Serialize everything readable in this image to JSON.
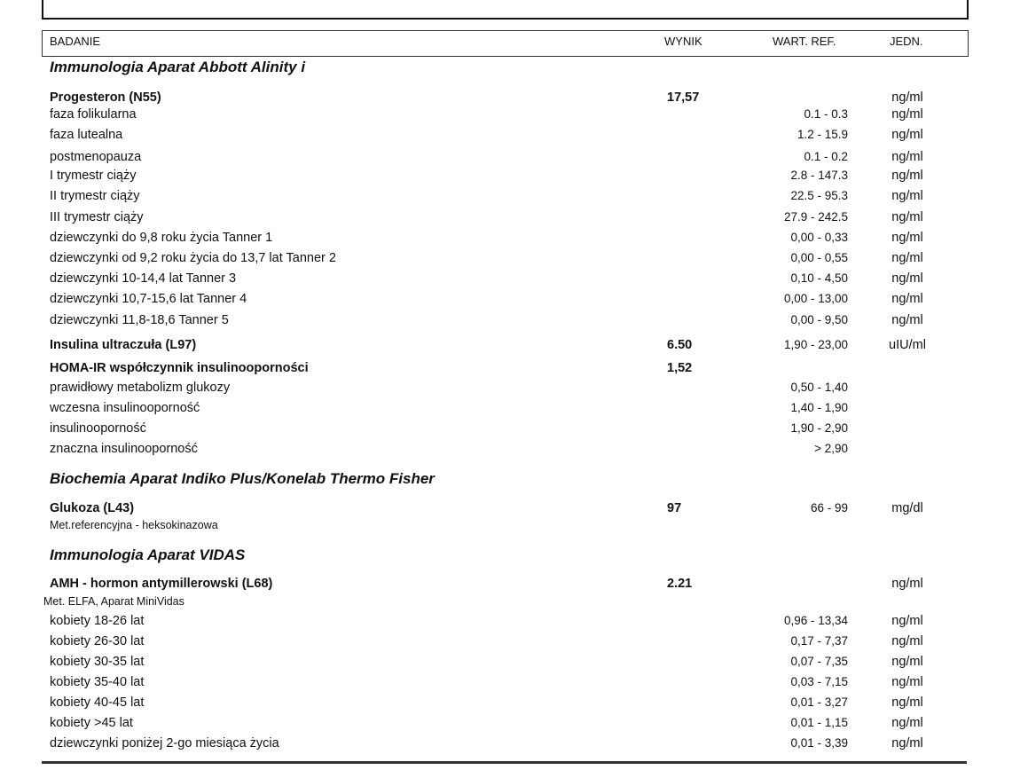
{
  "header": {
    "badanie": "BADANIE",
    "wynik": "WYNIK",
    "wart_ref": "WART. REF.",
    "jedn": "JEDN."
  },
  "rows": [
    {
      "type": "section",
      "name": "Immunologia Aparat Abbott Alinity i"
    },
    {
      "type": "test",
      "name": "Progesteron (N55)",
      "value": "17,57",
      "ref": "",
      "unit": "ng/ml"
    },
    {
      "type": "sub",
      "name": "faza folikularna",
      "ref": "0.1 - 0.3",
      "unit": "ng/ml"
    },
    {
      "type": "sub",
      "name": "faza lutealna",
      "ref": "1.2 - 15.9",
      "unit": "ng/ml"
    },
    {
      "type": "sub",
      "name": "postmenopauza",
      "ref": "0.1 - 0.2",
      "unit": "ng/ml"
    },
    {
      "type": "sub",
      "name": "I trymestr ciąży",
      "ref": "2.8 - 147.3",
      "unit": "ng/ml"
    },
    {
      "type": "sub",
      "name": "II trymestr ciąży",
      "ref": "22.5 - 95.3",
      "unit": "ng/ml"
    },
    {
      "type": "sub",
      "name": "III trymestr ciąży",
      "ref": "27.9 - 242.5",
      "unit": "ng/ml"
    },
    {
      "type": "sub",
      "name": "dziewczynki do 9,8 roku życia Tanner 1",
      "ref": "0,00 - 0,33",
      "unit": "ng/ml"
    },
    {
      "type": "sub",
      "name": "dziewczynki od 9,2 roku życia do 13,7 lat Tanner 2",
      "ref": "0,00 - 0,55",
      "unit": "ng/ml"
    },
    {
      "type": "sub",
      "name": "dziewczynki 10-14,4 lat Tanner 3",
      "ref": "0,10 - 4,50",
      "unit": "ng/ml"
    },
    {
      "type": "sub",
      "name": "dziewczynki 10,7-15,6 lat Tanner 4",
      "ref": "0,00 - 13,00",
      "unit": "ng/ml"
    },
    {
      "type": "sub",
      "name": "dziewczynki 11,8-18,6 Tanner 5",
      "ref": "0,00 - 9,50",
      "unit": "ng/ml"
    },
    {
      "type": "test",
      "name": "Insulina ultraczuła (L97)",
      "value": "6.50",
      "ref": "1,90 - 23,00",
      "unit": "uIU/ml"
    },
    {
      "type": "test",
      "name": "HOMA-IR współczynnik insulinooporności",
      "value": "1,52",
      "ref": "",
      "unit": ""
    },
    {
      "type": "sub",
      "name": "prawidłowy metabolizm glukozy",
      "ref": "0,50 - 1,40",
      "unit": ""
    },
    {
      "type": "sub",
      "name": "wczesna insulinooporność",
      "ref": "1,40 - 1,90",
      "unit": ""
    },
    {
      "type": "sub",
      "name": "insulinooporność",
      "ref": "1,90 - 2,90",
      "unit": ""
    },
    {
      "type": "sub",
      "name": "znaczna insulinooporność",
      "ref": "> 2,90",
      "unit": ""
    },
    {
      "type": "section",
      "name": "Biochemia Aparat Indiko Plus/Konelab Thermo Fisher"
    },
    {
      "type": "test",
      "name": "Glukoza (L43)",
      "value": "97",
      "ref": "66 - 99",
      "unit": "mg/dl"
    },
    {
      "type": "method",
      "name": "Met.referencyjna - heksokinazowa"
    },
    {
      "type": "section",
      "name": "Immunologia  Aparat VIDAS"
    },
    {
      "type": "test",
      "name": "AMH - hormon antymillerowski (L68)",
      "value": "2.21",
      "ref": "",
      "unit": "ng/ml"
    },
    {
      "type": "method2",
      "name": "Met. ELFA, Aparat MiniVidas"
    },
    {
      "type": "sub",
      "name": "kobiety 18-26 lat",
      "ref": "0,96 - 13,34",
      "unit": "ng/ml"
    },
    {
      "type": "sub",
      "name": "kobiety 26-30 lat",
      "ref": "0,17 - 7,37",
      "unit": "ng/ml"
    },
    {
      "type": "sub",
      "name": "kobiety 30-35 lat",
      "ref": "0,07 - 7,35",
      "unit": "ng/ml"
    },
    {
      "type": "sub",
      "name": "kobiety 35-40 lat",
      "ref": "0,03 - 7,15",
      "unit": "ng/ml"
    },
    {
      "type": "sub",
      "name": "kobiety 40-45 lat",
      "ref": "0,01 - 3,27",
      "unit": "ng/ml"
    },
    {
      "type": "sub",
      "name": "kobiety >45 lat",
      "ref": "0,01 - 1,15",
      "unit": "ng/ml"
    },
    {
      "type": "sub",
      "name": "dziewczynki poniżej 2-go miesiąca życia",
      "ref": "0,01 - 3,39",
      "unit": "ng/ml"
    }
  ]
}
